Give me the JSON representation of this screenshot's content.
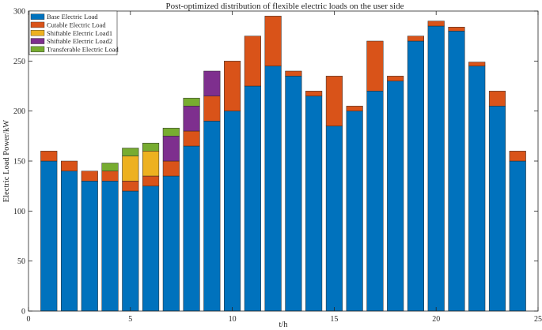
{
  "chart_data": {
    "type": "stacked-bar",
    "title": "Post-optimized distribution of flexible electric loads on the user side",
    "xlabel": "t/h",
    "ylabel": "Electric Load Power/kW",
    "xlim": [
      0,
      25
    ],
    "ylim": [
      0,
      300
    ],
    "xticks": [
      0,
      5,
      10,
      15,
      20,
      25
    ],
    "yticks": [
      0,
      50,
      100,
      150,
      200,
      250,
      300
    ],
    "grid": false,
    "legend_position": "top-left",
    "categories": [
      1,
      2,
      3,
      4,
      5,
      6,
      7,
      8,
      9,
      10,
      11,
      12,
      13,
      14,
      15,
      16,
      17,
      18,
      19,
      20,
      21,
      22,
      23,
      24
    ],
    "series": [
      {
        "name": "Base Electric Load",
        "color": "#0072bd",
        "values": [
          150,
          140,
          130,
          130,
          120,
          125,
          135,
          165,
          190,
          200,
          225,
          245,
          235,
          215,
          185,
          200,
          220,
          230,
          270,
          285,
          280,
          245,
          205,
          150
        ]
      },
      {
        "name": "Cutable Electric Load",
        "color": "#d95319",
        "values": [
          10,
          10,
          10,
          10,
          10,
          10,
          15,
          15,
          25,
          50,
          50,
          50,
          5,
          5,
          50,
          5,
          50,
          5,
          5,
          5,
          4,
          4,
          15,
          10
        ]
      },
      {
        "name": "Shiftable Electric Load1",
        "color": "#edb120",
        "values": [
          0,
          0,
          0,
          0,
          25,
          25,
          0,
          0,
          0,
          0,
          0,
          0,
          0,
          0,
          0,
          0,
          0,
          0,
          0,
          0,
          0,
          0,
          0,
          0
        ]
      },
      {
        "name": "Shiftable Electric Load2",
        "color": "#7e2f8e",
        "values": [
          0,
          0,
          0,
          0,
          0,
          0,
          25,
          25,
          25,
          0,
          0,
          0,
          0,
          0,
          0,
          0,
          0,
          0,
          0,
          0,
          0,
          0,
          0,
          0
        ]
      },
      {
        "name": "Transferable Electric Load",
        "color": "#77ac30",
        "values": [
          0,
          0,
          0,
          8,
          8,
          8,
          8,
          8,
          0,
          0,
          0,
          0,
          0,
          0,
          0,
          0,
          0,
          0,
          0,
          0,
          0,
          0,
          0,
          0
        ]
      }
    ]
  }
}
